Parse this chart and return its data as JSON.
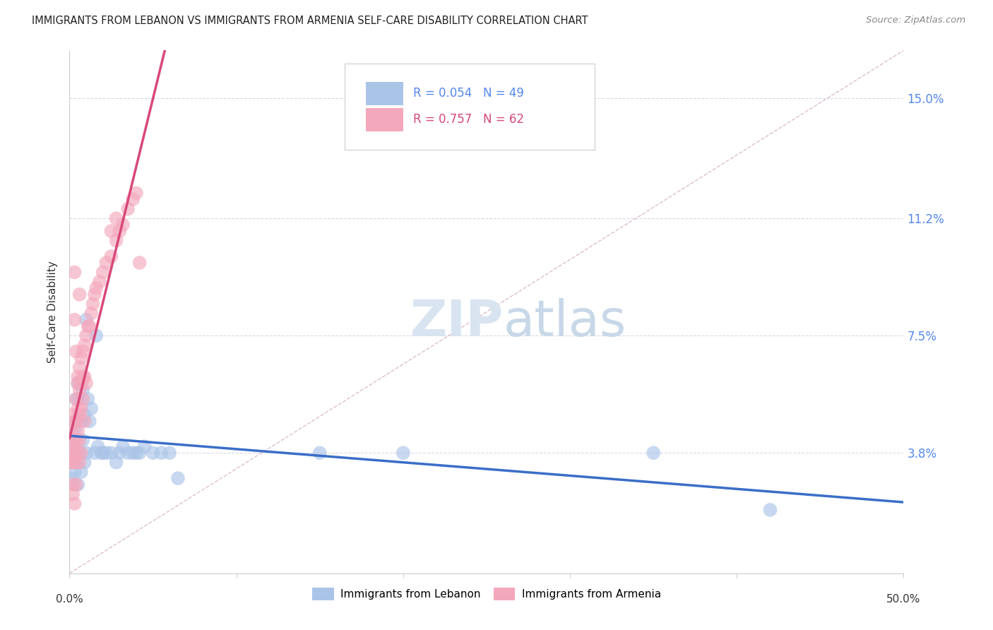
{
  "title": "IMMIGRANTS FROM LEBANON VS IMMIGRANTS FROM ARMENIA SELF-CARE DISABILITY CORRELATION CHART",
  "source": "Source: ZipAtlas.com",
  "ylabel": "Self-Care Disability",
  "ytick_labels": [
    "15.0%",
    "11.2%",
    "7.5%",
    "3.8%"
  ],
  "ytick_values": [
    0.15,
    0.112,
    0.075,
    0.038
  ],
  "xlim": [
    0.0,
    0.5
  ],
  "ylim": [
    0.0,
    0.165
  ],
  "legend_lebanon_R": "0.054",
  "legend_lebanon_N": "49",
  "legend_armenia_R": "0.757",
  "legend_armenia_N": "62",
  "watermark_zip": "ZIP",
  "watermark_atlas": "atlas",
  "lebanon_color": "#aac4e8",
  "armenia_color": "#f4a8bc",
  "lebanon_line_color": "#3a6ec8",
  "armenia_line_color": "#d84878",
  "diagonal_color": "#c8b8c8",
  "grid_color": "#d8d8e8",
  "lebanon_x": [
    0.001,
    0.001,
    0.002,
    0.002,
    0.003,
    0.003,
    0.003,
    0.004,
    0.004,
    0.004,
    0.005,
    0.005,
    0.005,
    0.006,
    0.006,
    0.007,
    0.007,
    0.008,
    0.008,
    0.009,
    0.009,
    0.01,
    0.01,
    0.011,
    0.012,
    0.013,
    0.015,
    0.016,
    0.017,
    0.019,
    0.02,
    0.022,
    0.025,
    0.028,
    0.03,
    0.032,
    0.035,
    0.038,
    0.04,
    0.042,
    0.045,
    0.05,
    0.055,
    0.06,
    0.065,
    0.15,
    0.2,
    0.35,
    0.42
  ],
  "lebanon_y": [
    0.038,
    0.03,
    0.042,
    0.035,
    0.045,
    0.04,
    0.032,
    0.055,
    0.048,
    0.035,
    0.06,
    0.038,
    0.028,
    0.055,
    0.038,
    0.048,
    0.032,
    0.058,
    0.042,
    0.05,
    0.035,
    0.08,
    0.038,
    0.055,
    0.048,
    0.052,
    0.038,
    0.075,
    0.04,
    0.038,
    0.038,
    0.038,
    0.038,
    0.035,
    0.038,
    0.04,
    0.038,
    0.038,
    0.038,
    0.038,
    0.04,
    0.038,
    0.038,
    0.038,
    0.03,
    0.038,
    0.038,
    0.038,
    0.02
  ],
  "armenia_x": [
    0.001,
    0.001,
    0.001,
    0.002,
    0.002,
    0.002,
    0.002,
    0.002,
    0.003,
    0.003,
    0.003,
    0.003,
    0.004,
    0.004,
    0.004,
    0.004,
    0.004,
    0.005,
    0.005,
    0.005,
    0.005,
    0.006,
    0.006,
    0.006,
    0.006,
    0.006,
    0.007,
    0.007,
    0.007,
    0.007,
    0.008,
    0.008,
    0.008,
    0.009,
    0.009,
    0.009,
    0.01,
    0.01,
    0.011,
    0.012,
    0.013,
    0.014,
    0.015,
    0.016,
    0.018,
    0.02,
    0.022,
    0.025,
    0.028,
    0.03,
    0.032,
    0.035,
    0.038,
    0.04,
    0.042,
    0.003,
    0.003,
    0.004,
    0.005,
    0.006,
    0.025,
    0.028
  ],
  "armenia_y": [
    0.038,
    0.045,
    0.035,
    0.05,
    0.04,
    0.035,
    0.028,
    0.025,
    0.048,
    0.042,
    0.038,
    0.022,
    0.055,
    0.048,
    0.042,
    0.035,
    0.028,
    0.06,
    0.052,
    0.045,
    0.038,
    0.065,
    0.058,
    0.05,
    0.042,
    0.035,
    0.068,
    0.06,
    0.052,
    0.038,
    0.07,
    0.062,
    0.055,
    0.072,
    0.062,
    0.048,
    0.075,
    0.06,
    0.078,
    0.078,
    0.082,
    0.085,
    0.088,
    0.09,
    0.092,
    0.095,
    0.098,
    0.1,
    0.105,
    0.108,
    0.11,
    0.115,
    0.118,
    0.12,
    0.098,
    0.095,
    0.08,
    0.07,
    0.062,
    0.088,
    0.108,
    0.112
  ],
  "xtick_positions": [
    0.0,
    0.1,
    0.2,
    0.3,
    0.4,
    0.5
  ],
  "bottom_legend_labels": [
    "Immigrants from Lebanon",
    "Immigrants from Armenia"
  ]
}
